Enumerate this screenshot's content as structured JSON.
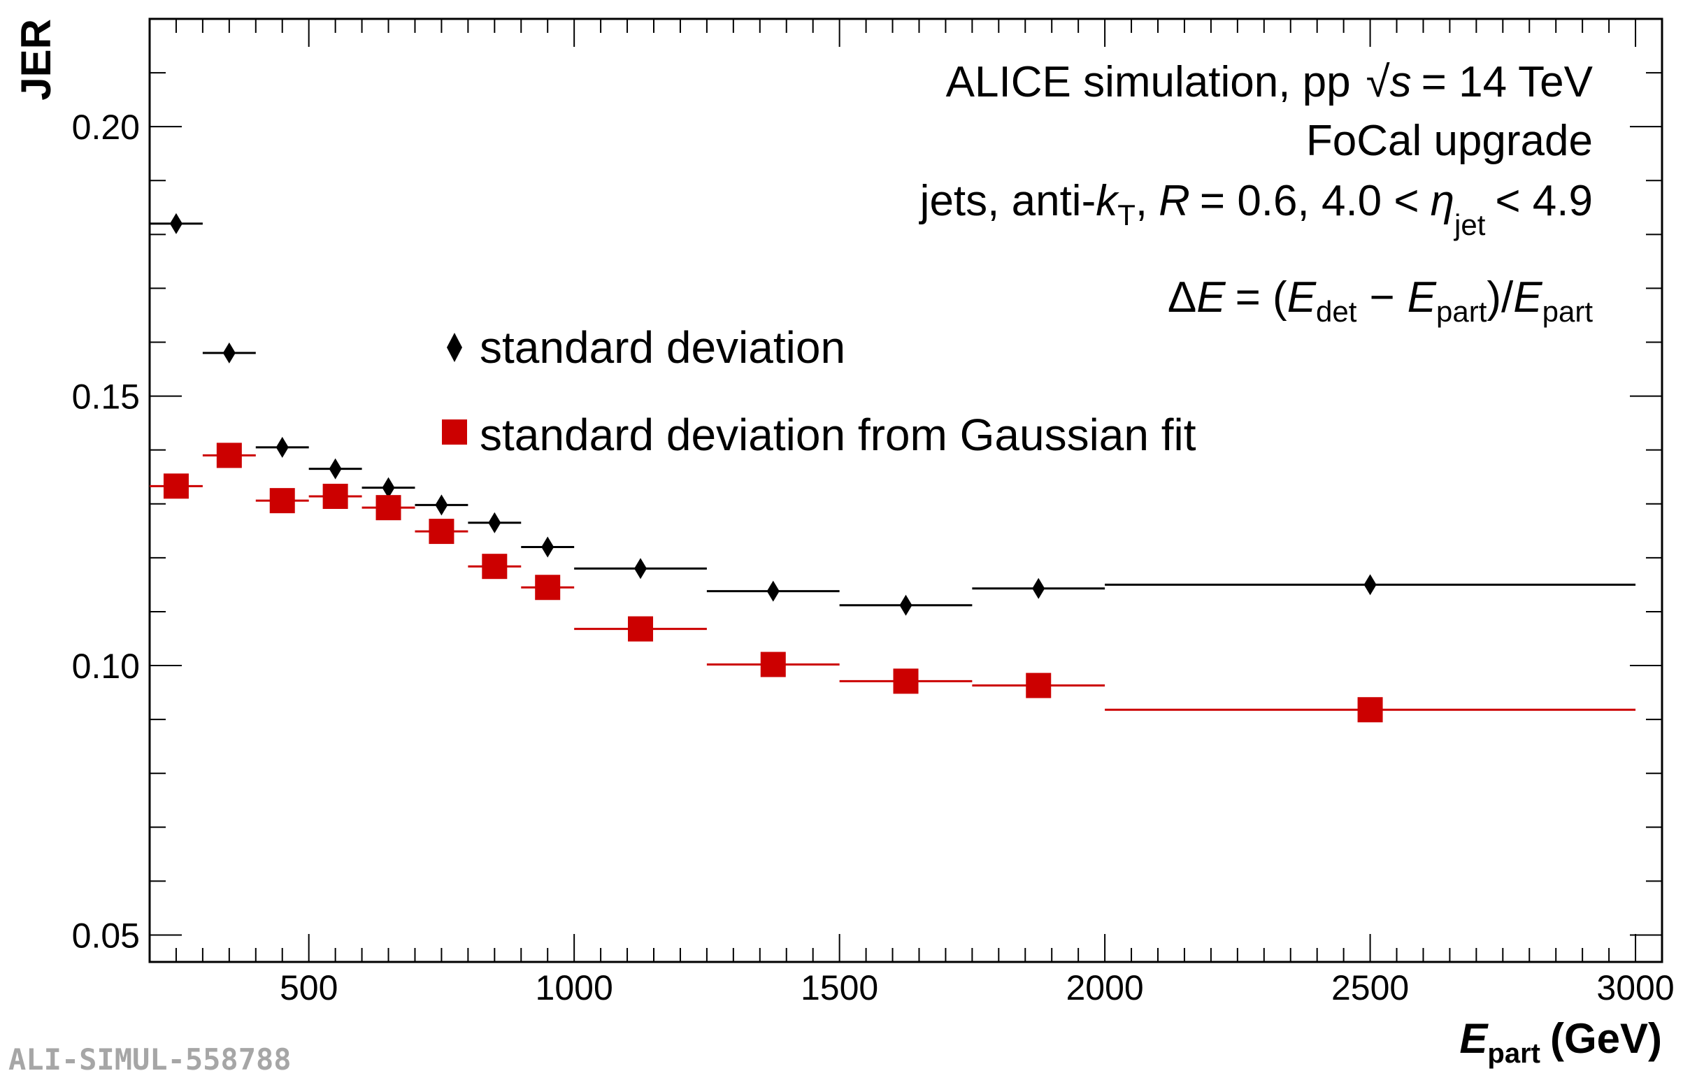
{
  "colors": {
    "std": "#000000",
    "gauss": "#cc0000",
    "watermark": "#a6a6a6"
  },
  "annotations": {
    "line1": "ALICE simulation, pp",
    "sqrt_symbol": "√",
    "s": "s",
    "energy": "= 14 TeV",
    "line2": "FoCal upgrade",
    "jets_prefix": "jets, anti-",
    "k": "k",
    "T": "T",
    "comma_R": ",",
    "R": "R",
    "R_value": "= 0.6, 4.0 <",
    "eta": "η",
    "jet_sub": "jet",
    "eta_max": "< 4.9",
    "dE_delta": "Δ",
    "dE_E": "E",
    "dE_eq": "= (",
    "E_det": "E",
    "det_sub": "det",
    "minus": "−",
    "E_part1": "E",
    "part_sub1": "part",
    "slash": ")/",
    "E_part2": "E",
    "part_sub2": "part"
  },
  "watermark": "ALI-SIMUL-558788",
  "chart_data": {
    "type": "scatter",
    "title": "",
    "xlabel": "E_part (GeV)",
    "xlabel_main": "E",
    "xlabel_sub": "part",
    "xlabel_unit": "(GeV)",
    "ylabel": "JER",
    "xlim": [
      200,
      3050
    ],
    "ylim": [
      0.045,
      0.22
    ],
    "x_ticks": [
      500,
      1000,
      1500,
      2000,
      2500,
      3000
    ],
    "x_tick_labels": [
      "500",
      "1000",
      "1500",
      "2000",
      "2500",
      "3000"
    ],
    "y_ticks": [
      0.05,
      0.1,
      0.15,
      0.2
    ],
    "y_tick_labels": [
      "0.05",
      "0.10",
      "0.15",
      "0.20"
    ],
    "legend": [
      {
        "label": "standard deviation",
        "marker": "diamond",
        "series": 0
      },
      {
        "label": "standard deviation from Gaussian fit",
        "marker": "square",
        "series": 1
      }
    ],
    "series": [
      {
        "name": "standard deviation",
        "marker": "diamond",
        "points": [
          {
            "x": 250,
            "xlo": 200,
            "xhi": 300,
            "y": 0.182
          },
          {
            "x": 350,
            "xlo": 300,
            "xhi": 400,
            "y": 0.158
          },
          {
            "x": 450,
            "xlo": 400,
            "xhi": 500,
            "y": 0.1405
          },
          {
            "x": 550,
            "xlo": 500,
            "xhi": 600,
            "y": 0.1365
          },
          {
            "x": 650,
            "xlo": 600,
            "xhi": 700,
            "y": 0.133
          },
          {
            "x": 750,
            "xlo": 700,
            "xhi": 800,
            "y": 0.1298
          },
          {
            "x": 850,
            "xlo": 800,
            "xhi": 900,
            "y": 0.1265
          },
          {
            "x": 950,
            "xlo": 900,
            "xhi": 1000,
            "y": 0.122
          },
          {
            "x": 1125,
            "xlo": 1000,
            "xhi": 1250,
            "y": 0.118
          },
          {
            "x": 1375,
            "xlo": 1250,
            "xhi": 1500,
            "y": 0.1138
          },
          {
            "x": 1625,
            "xlo": 1500,
            "xhi": 1750,
            "y": 0.1112
          },
          {
            "x": 1875,
            "xlo": 1750,
            "xhi": 2000,
            "y": 0.1143
          },
          {
            "x": 2500,
            "xlo": 2000,
            "xhi": 3000,
            "y": 0.115
          }
        ]
      },
      {
        "name": "standard deviation from Gaussian fit",
        "marker": "square",
        "points": [
          {
            "x": 250,
            "xlo": 200,
            "xhi": 300,
            "y": 0.1333
          },
          {
            "x": 350,
            "xlo": 300,
            "xhi": 400,
            "y": 0.139
          },
          {
            "x": 450,
            "xlo": 400,
            "xhi": 500,
            "y": 0.1306
          },
          {
            "x": 550,
            "xlo": 500,
            "xhi": 600,
            "y": 0.1314
          },
          {
            "x": 650,
            "xlo": 600,
            "xhi": 700,
            "y": 0.1293
          },
          {
            "x": 750,
            "xlo": 700,
            "xhi": 800,
            "y": 0.1249
          },
          {
            "x": 850,
            "xlo": 800,
            "xhi": 900,
            "y": 0.1184
          },
          {
            "x": 950,
            "xlo": 900,
            "xhi": 1000,
            "y": 0.1145
          },
          {
            "x": 1125,
            "xlo": 1000,
            "xhi": 1250,
            "y": 0.1068
          },
          {
            "x": 1375,
            "xlo": 1250,
            "xhi": 1500,
            "y": 0.1002
          },
          {
            "x": 1625,
            "xlo": 1500,
            "xhi": 1750,
            "y": 0.0971
          },
          {
            "x": 1875,
            "xlo": 1750,
            "xhi": 2000,
            "y": 0.0963
          },
          {
            "x": 2500,
            "xlo": 2000,
            "xhi": 3000,
            "y": 0.0918
          }
        ]
      }
    ]
  }
}
